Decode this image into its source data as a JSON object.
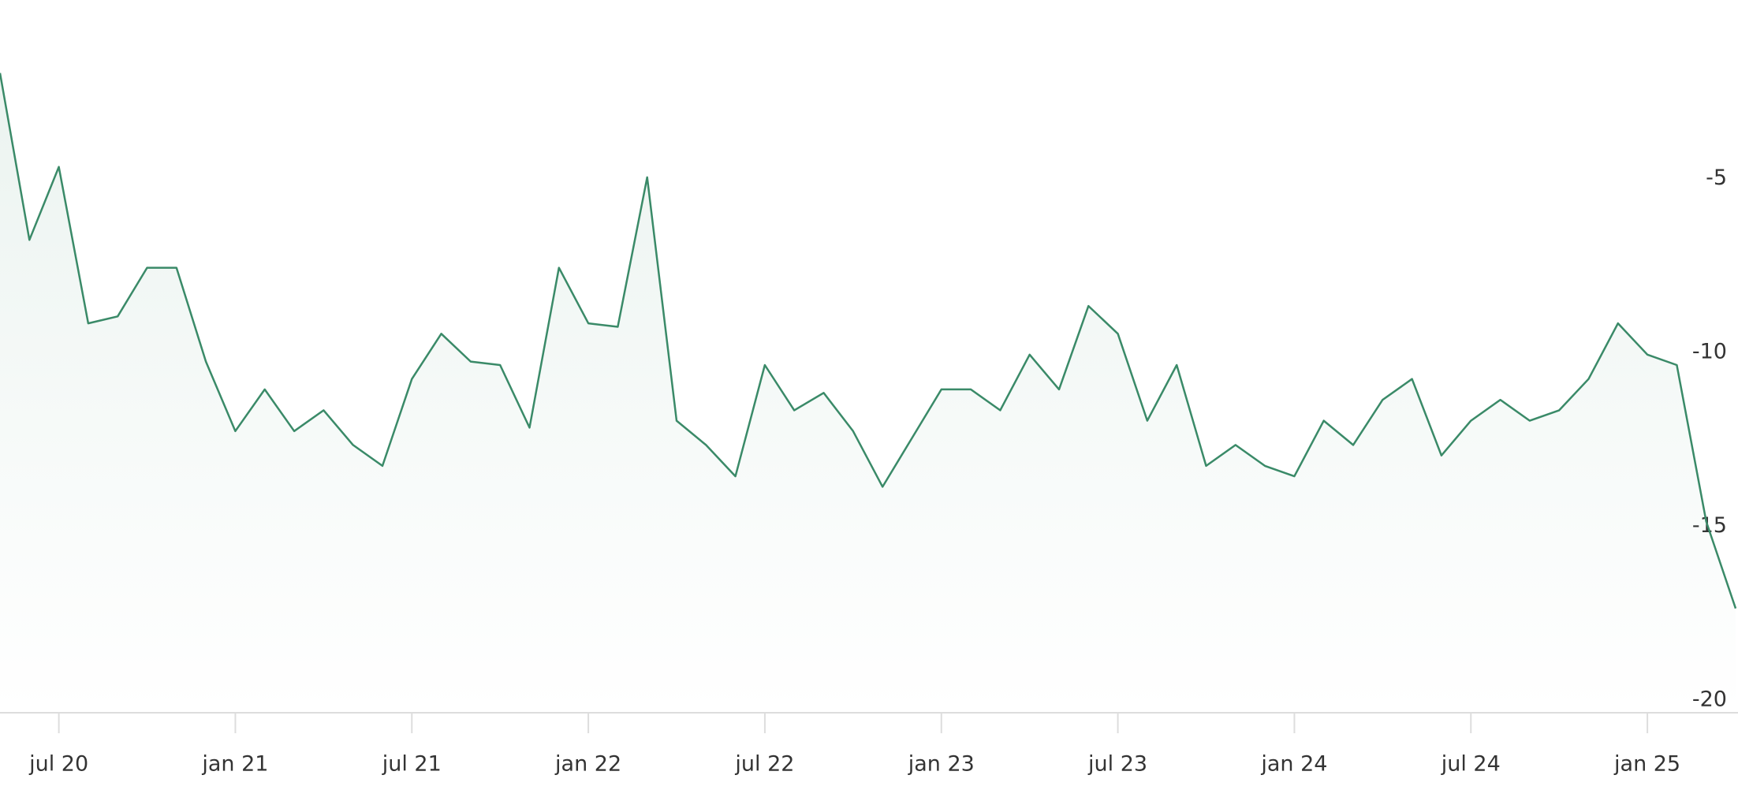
{
  "chart_data": {
    "type": "line",
    "x": [
      "2020-05",
      "2020-06",
      "2020-07",
      "2020-08",
      "2020-09",
      "2020-10",
      "2020-11",
      "2020-12",
      "2021-01",
      "2021-02",
      "2021-03",
      "2021-04",
      "2021-05",
      "2021-06",
      "2021-07",
      "2021-08",
      "2021-09",
      "2021-10",
      "2021-11",
      "2021-12",
      "2022-01",
      "2022-02",
      "2022-03",
      "2022-04",
      "2022-05",
      "2022-06",
      "2022-07",
      "2022-08",
      "2022-09",
      "2022-10",
      "2022-11",
      "2022-12",
      "2023-01",
      "2023-02",
      "2023-03",
      "2023-04",
      "2023-05",
      "2023-06",
      "2023-07",
      "2023-08",
      "2023-09",
      "2023-10",
      "2023-11",
      "2023-12",
      "2024-01",
      "2024-02",
      "2024-03",
      "2024-04",
      "2024-05",
      "2024-06",
      "2024-07",
      "2024-08",
      "2024-09",
      "2024-10",
      "2024-11",
      "2024-12",
      "2025-01",
      "2025-02",
      "2025-03",
      "2025-04"
    ],
    "series": [
      {
        "color": "#3a8a68",
        "values": [
          -1.6,
          -6.4,
          -4.3,
          -8.8,
          -8.6,
          -7.2,
          -7.2,
          -9.9,
          -11.9,
          -10.7,
          -11.9,
          -11.3,
          -12.3,
          -12.9,
          -10.4,
          -9.1,
          -9.9,
          -10.0,
          -11.8,
          -7.2,
          -8.8,
          -8.9,
          -4.6,
          -11.6,
          -12.3,
          -13.2,
          -10.0,
          -11.3,
          -10.8,
          -11.9,
          -13.5,
          -12.1,
          -10.7,
          -10.7,
          -11.3,
          -9.7,
          -10.7,
          -8.3,
          -9.1,
          -11.6,
          -10.0,
          -12.9,
          -12.3,
          -12.9,
          -13.2,
          -11.6,
          -12.3,
          -11.0,
          -10.4,
          -12.6,
          -11.6,
          -11.0,
          -11.6,
          -11.3,
          -10.4,
          -8.8,
          -9.7,
          -10.0,
          -14.5,
          -17.0
        ]
      }
    ],
    "xlim": [
      "2020-05",
      "2025-04"
    ],
    "xticks": [
      {
        "value": "2020-07",
        "label": "jul 20"
      },
      {
        "value": "2021-01",
        "label": "jan 21"
      },
      {
        "value": "2021-07",
        "label": "jul 21"
      },
      {
        "value": "2022-01",
        "label": "jan 22"
      },
      {
        "value": "2022-07",
        "label": "jul 22"
      },
      {
        "value": "2023-01",
        "label": "jan 23"
      },
      {
        "value": "2023-07",
        "label": "jul 23"
      },
      {
        "value": "2024-01",
        "label": "jan 24"
      },
      {
        "value": "2024-07",
        "label": "jul 24"
      },
      {
        "value": "2025-01",
        "label": "jan 25"
      }
    ],
    "ylim": [
      -20,
      0.5
    ],
    "yticks": [
      -5,
      -10,
      -15,
      -20
    ]
  }
}
